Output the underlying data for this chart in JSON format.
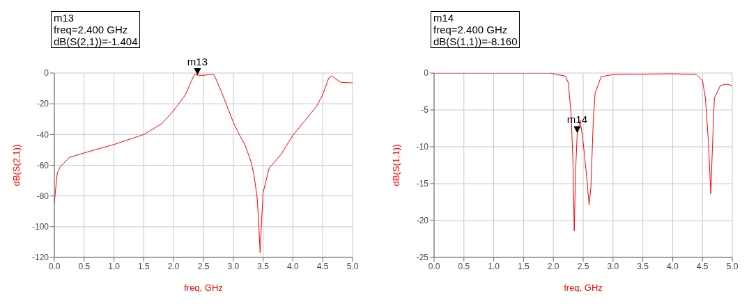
{
  "chart_data": [
    {
      "type": "line",
      "xlabel": "freq, GHz",
      "ylabel": "dB(S(2,1))",
      "xlim": [
        0,
        5
      ],
      "ylim": [
        -120,
        0
      ],
      "grid": true,
      "legend": false,
      "marker": "none",
      "line_style": "solid",
      "xticks": [
        {
          "value": 0,
          "label": "0.0"
        },
        {
          "value": 0.5,
          "label": "0.5"
        },
        {
          "value": 1,
          "label": "1.0"
        },
        {
          "value": 1.5,
          "label": "1.5"
        },
        {
          "value": 2,
          "label": "2.0"
        },
        {
          "value": 2.5,
          "label": "2.5"
        },
        {
          "value": 3,
          "label": "3.0"
        },
        {
          "value": 3.5,
          "label": "3.5"
        },
        {
          "value": 4,
          "label": "4.0"
        },
        {
          "value": 4.5,
          "label": "4.5"
        },
        {
          "value": 5,
          "label": "5.0"
        }
      ],
      "yticks": [
        -120,
        -100,
        -80,
        -60,
        -40,
        -20,
        0
      ],
      "annotations": [
        "m13\nfreq=2.400 GHz\ndB(S(2,1))=-1.404",
        {
          "text": "m13",
          "x": 2.4,
          "y": -1.404
        }
      ],
      "series": [
        {
          "color": "#ff0000",
          "x": [
            0,
            0.02,
            0.05,
            0.1,
            0.25,
            0.5,
            1.0,
            1.5,
            1.8,
            2.0,
            2.2,
            2.3,
            2.35,
            2.4,
            2.5,
            2.6,
            2.68,
            2.8,
            2.9,
            3.0,
            3.1,
            3.2,
            3.3,
            3.35,
            3.4,
            3.43,
            3.45,
            3.47,
            3.5,
            3.6,
            3.8,
            4.0,
            4.2,
            4.4,
            4.5,
            4.6,
            4.65,
            4.7,
            4.8,
            5.0
          ],
          "values": [
            -85,
            -76,
            -65,
            -61,
            -55,
            -52,
            -46.5,
            -40,
            -33,
            -24.5,
            -14,
            -5,
            -1,
            -1.4,
            -1.5,
            -1,
            -1.2,
            -12,
            -22,
            -32,
            -40,
            -47,
            -58,
            -67,
            -81,
            -100,
            -117,
            -100,
            -78,
            -62,
            -53,
            -40.5,
            -31,
            -21.5,
            -14,
            -3.3,
            -1.8,
            -3.3,
            -6,
            -6.4
          ]
        }
      ]
    },
    {
      "type": "line",
      "xlabel": "freq, GHz",
      "ylabel": "dB(S(1,1))",
      "xlim": [
        0,
        5
      ],
      "ylim": [
        -25,
        0
      ],
      "grid": true,
      "legend": false,
      "marker": "none",
      "line_style": "solid",
      "xticks": [
        {
          "value": 0,
          "label": "0.0"
        },
        {
          "value": 0.5,
          "label": "0.5"
        },
        {
          "value": 1,
          "label": "1.0"
        },
        {
          "value": 1.5,
          "label": "1.5"
        },
        {
          "value": 2,
          "label": "2.0"
        },
        {
          "value": 2.5,
          "label": "2.5"
        },
        {
          "value": 3,
          "label": "3.0"
        },
        {
          "value": 3.5,
          "label": "3.5"
        },
        {
          "value": 4,
          "label": "4.0"
        },
        {
          "value": 4.5,
          "label": "4.5"
        },
        {
          "value": 5,
          "label": "5.0"
        }
      ],
      "yticks": [
        -25,
        -20,
        -15,
        -10,
        -5,
        0
      ],
      "annotations": [
        "m14\nfreq=2.400 GHz\ndB(S(1,1))=-8.160",
        {
          "text": "m14",
          "x": 2.4,
          "y": -8.16
        }
      ],
      "series": [
        {
          "color": "#ff0000",
          "x": [
            0,
            1.0,
            1.95,
            2.0,
            2.2,
            2.25,
            2.3,
            2.33,
            2.35,
            2.37,
            2.4,
            2.45,
            2.5,
            2.55,
            2.6,
            2.63,
            2.67,
            2.7,
            2.8,
            3.0,
            4.0,
            4.4,
            4.5,
            4.55,
            4.6,
            4.64,
            4.67,
            4.7,
            4.8,
            4.9,
            5.0
          ],
          "values": [
            0,
            0,
            0,
            -0.1,
            -0.4,
            -1.3,
            -5.8,
            -12.4,
            -21.4,
            -13.9,
            -8.2,
            -6.4,
            -9.4,
            -13.3,
            -17.9,
            -15.4,
            -6.4,
            -2.8,
            -0.5,
            -0.2,
            -0.1,
            -0.2,
            -1,
            -3.4,
            -9.4,
            -16.4,
            -9.4,
            -3.4,
            -1.7,
            -1.5,
            -1.7
          ]
        }
      ]
    }
  ]
}
